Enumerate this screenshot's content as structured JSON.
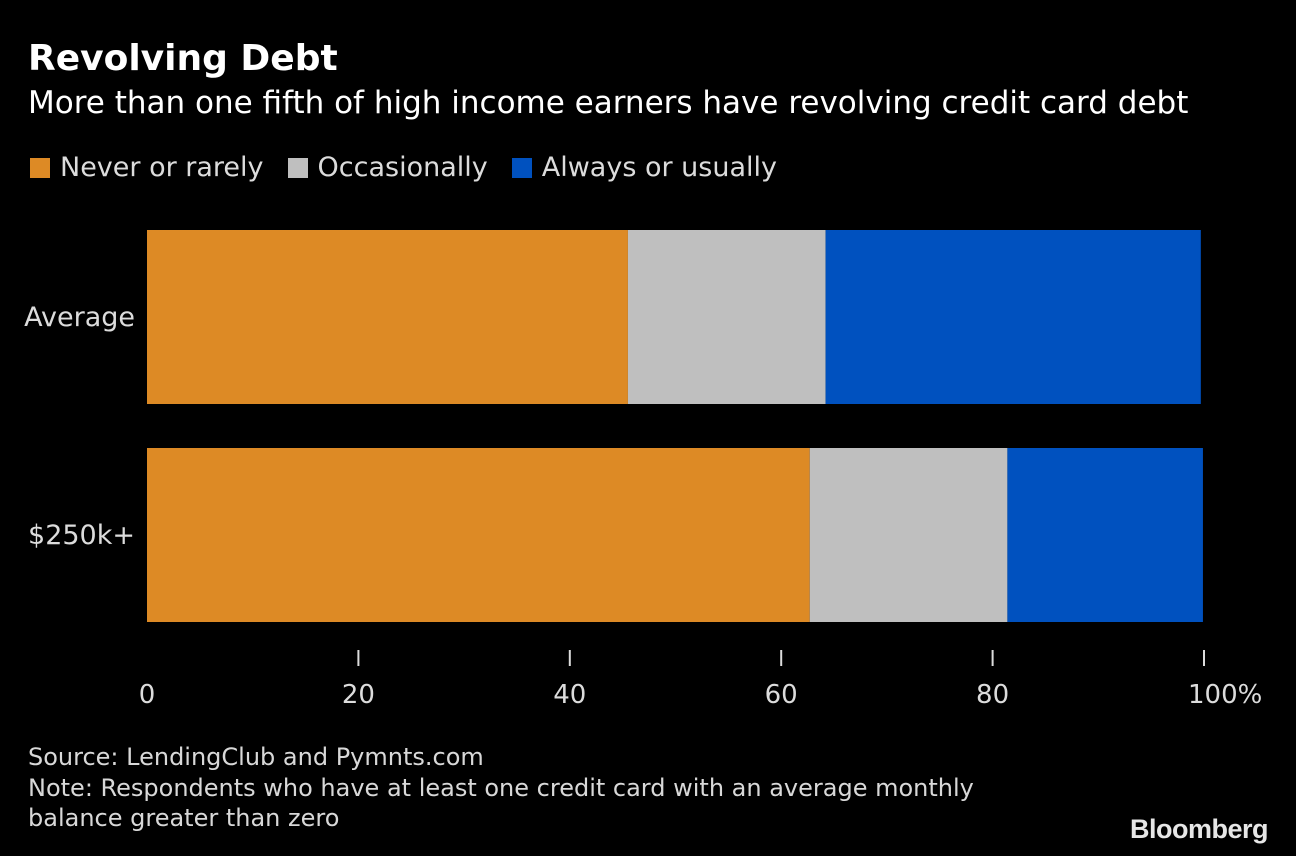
{
  "header": {
    "title": "Revolving Debt",
    "subtitle": "More than one fifth of high income earners have revolving credit card debt"
  },
  "chart_data": {
    "type": "bar",
    "orientation": "horizontal",
    "stacked": true,
    "categories": [
      "Average",
      "$250k+"
    ],
    "series": [
      {
        "name": "Never or rarely",
        "color": "#dd8a25",
        "values": [
          45.5,
          62.7
        ]
      },
      {
        "name": "Occasionally",
        "color": "#bfbfbf",
        "values": [
          18.7,
          18.7
        ]
      },
      {
        "name": "Always or usually",
        "color": "#0051bf",
        "values": [
          35.5,
          18.5
        ]
      }
    ],
    "xlim": [
      0,
      100
    ],
    "xticks": [
      0,
      20,
      40,
      60,
      80,
      100
    ],
    "xtick_labels": [
      "0",
      "20",
      "40",
      "60",
      "80",
      "100%"
    ],
    "legend_position": "top-left",
    "grid": false
  },
  "footer": {
    "source": "Source: LendingClub and Pymnts.com",
    "note_line1": "Note: Respondents who have at least one credit card with an average monthly",
    "note_line2": "balance greater than zero",
    "brand": "Bloomberg"
  }
}
